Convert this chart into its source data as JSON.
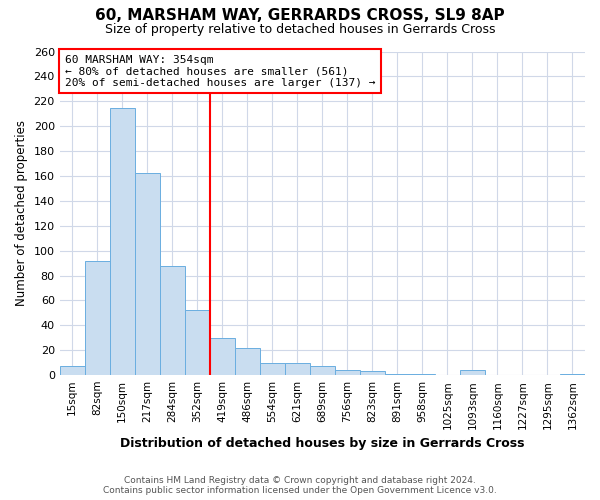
{
  "title_line1": "60, MARSHAM WAY, GERRARDS CROSS, SL9 8AP",
  "title_line2": "Size of property relative to detached houses in Gerrards Cross",
  "xlabel": "Distribution of detached houses by size in Gerrards Cross",
  "ylabel": "Number of detached properties",
  "categories": [
    "15sqm",
    "82sqm",
    "150sqm",
    "217sqm",
    "284sqm",
    "352sqm",
    "419sqm",
    "486sqm",
    "554sqm",
    "621sqm",
    "689sqm",
    "756sqm",
    "823sqm",
    "891sqm",
    "958sqm",
    "1025sqm",
    "1093sqm",
    "1160sqm",
    "1227sqm",
    "1295sqm",
    "1362sqm"
  ],
  "values": [
    7,
    92,
    215,
    162,
    88,
    52,
    30,
    22,
    10,
    10,
    7,
    4,
    3,
    1,
    1,
    0,
    4,
    0,
    0,
    0,
    1
  ],
  "bar_color": "#c9ddf0",
  "bar_edge_color": "#6aaee0",
  "vline_color": "red",
  "vline_x_index": 5.5,
  "annotation_text_line1": "60 MARSHAM WAY: 354sqm",
  "annotation_text_line2": "← 80% of detached houses are smaller (561)",
  "annotation_text_line3": "20% of semi-detached houses are larger (137) →",
  "annotation_box_color": "white",
  "annotation_border_color": "red",
  "ylim": [
    0,
    260
  ],
  "yticks": [
    0,
    20,
    40,
    60,
    80,
    100,
    120,
    140,
    160,
    180,
    200,
    220,
    240,
    260
  ],
  "footer_line1": "Contains HM Land Registry data © Crown copyright and database right 2024.",
  "footer_line2": "Contains public sector information licensed under the Open Government Licence v3.0.",
  "bg_color": "#ffffff",
  "plot_bg_color": "#ffffff",
  "grid_color": "#d0d8e8"
}
